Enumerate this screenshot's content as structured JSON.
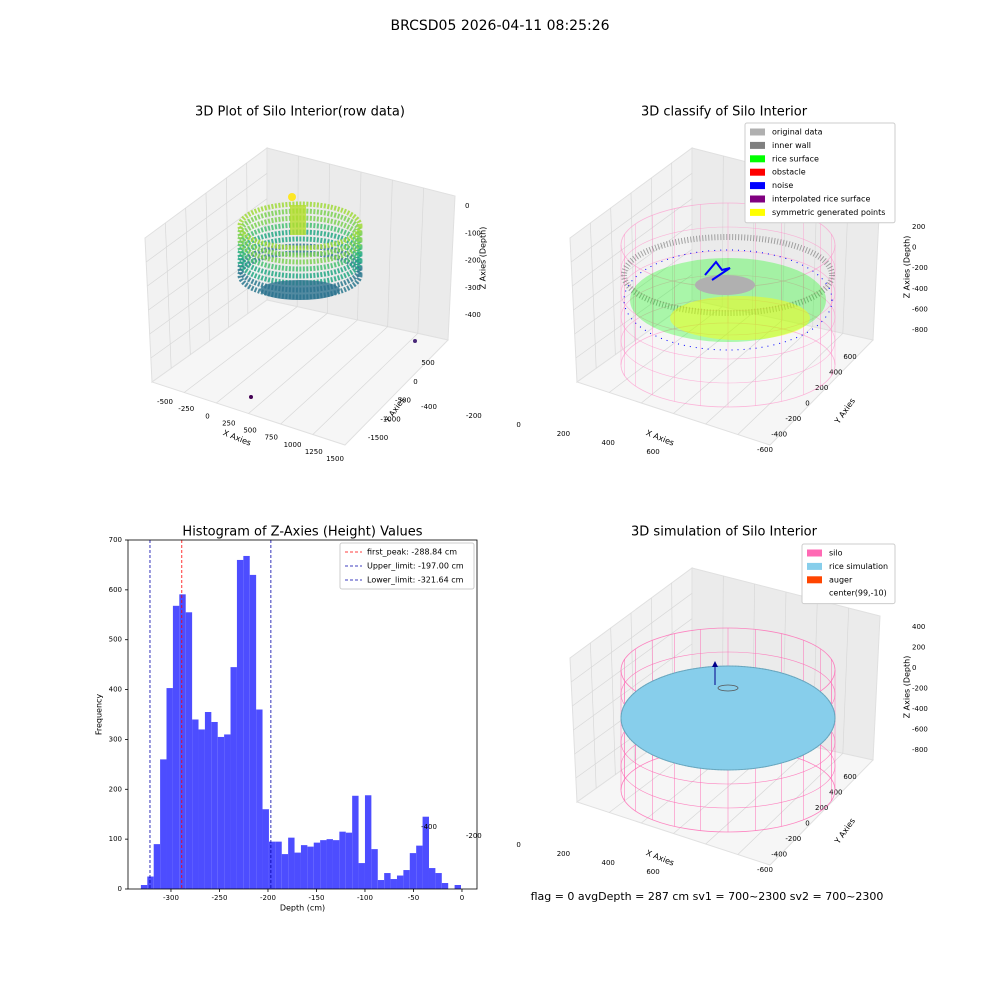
{
  "suptitle": "BRCSD05 2026-04-11 08:25:26",
  "chart_data": [
    {
      "type": "scatter3d",
      "title": "3D Plot of Silo Interior(row data)",
      "xlabel": "X Axies",
      "ylabel": "Y Axies",
      "zlabel": "Z Axies (Depth)",
      "xticks": [
        -500,
        -250,
        0,
        250,
        500,
        750,
        1000,
        1250,
        1500
      ],
      "yticks": [
        -1500,
        -1000,
        -500,
        0,
        500
      ],
      "zticks": [
        -400,
        -300,
        -200,
        -100,
        0
      ]
    },
    {
      "type": "scatter3d",
      "title": "3D classify of Silo Interior",
      "xlabel": "X Axies",
      "ylabel": "Y Axies",
      "zlabel": "Z Axies (Depth)",
      "xticks": [
        -400,
        -200,
        0,
        200,
        400,
        600
      ],
      "yticks": [
        -600,
        -400,
        -200,
        0,
        200,
        400,
        600
      ],
      "zticks": [
        -800,
        -600,
        -400,
        -200,
        0,
        200
      ],
      "legend": [
        {
          "name": "original data",
          "color": "#b0b0b0"
        },
        {
          "name": "inner wall",
          "color": "#808080"
        },
        {
          "name": "rice surface",
          "color": "#00ff00"
        },
        {
          "name": "obstacle",
          "color": "#ff0000"
        },
        {
          "name": "noise",
          "color": "#0000ff"
        },
        {
          "name": "interpolated rice surface",
          "color": "#800080"
        },
        {
          "name": "symmetric generated points",
          "color": "#ffff00"
        }
      ]
    },
    {
      "type": "histogram",
      "title": "Histogram of Z-Axies (Height) Values",
      "xlabel": "Depth (cm)",
      "ylabel": "Frequency",
      "color": "#4d4dff",
      "bins": [
        -331,
        -324.4,
        -317.8,
        -311.2,
        -304.6,
        -298,
        -291.4,
        -284.8,
        -278.2,
        -271.6,
        -265,
        -258.4,
        -251.8,
        -245.2,
        -238.6,
        -232,
        -225.4,
        -218.8,
        -212.2,
        -205.6,
        -199,
        -192.4,
        -185.8,
        -179.2,
        -172.6,
        -166,
        -159.4,
        -152.8,
        -146.2,
        -139.6,
        -133,
        -126.4,
        -119.8,
        -113.2,
        -106.6,
        -100,
        -93.4,
        -86.8,
        -80.2,
        -73.6,
        -67,
        -60.4,
        -53.8,
        -47.2,
        -40.6,
        -34,
        -27.4,
        -20.8,
        -14.2,
        -7.6,
        -1
      ],
      "counts": [
        8,
        25,
        90,
        260,
        403,
        568,
        591,
        555,
        340,
        320,
        355,
        335,
        305,
        310,
        445,
        660,
        668,
        630,
        360,
        160,
        95,
        95,
        70,
        103,
        73,
        88,
        85,
        93,
        98,
        100,
        98,
        115,
        113,
        187,
        52,
        188,
        80,
        18,
        32,
        20,
        27,
        38,
        72,
        87,
        145,
        42,
        32,
        12,
        0,
        8
      ],
      "xlim": [
        -344.3,
        15.5
      ],
      "ylim": [
        0,
        700
      ],
      "xticks": [
        -300,
        -250,
        -200,
        -150,
        -100,
        -50,
        0
      ],
      "yticks": [
        0,
        100,
        200,
        300,
        400,
        500,
        600,
        700
      ],
      "vlines": [
        {
          "label": "first_peak: -288.84 cm",
          "value": -288.84,
          "color": "#ff0000"
        },
        {
          "label": "Upper_limit: -197.00 cm",
          "value": -197.0,
          "color": "#0000aa"
        },
        {
          "label": "Lower_limit: -321.64 cm",
          "value": -321.64,
          "color": "#0000aa"
        }
      ]
    },
    {
      "type": "surface3d",
      "title": "3D simulation of Silo Interior",
      "xlabel": "X Axies",
      "ylabel": "Y Axies",
      "zlabel": "Z Axies (Depth)",
      "xticks": [
        -400,
        -200,
        0,
        200,
        400,
        600
      ],
      "yticks": [
        -600,
        -400,
        -200,
        0,
        200,
        400,
        600
      ],
      "zticks": [
        -800,
        -600,
        -400,
        -200,
        0,
        200,
        400
      ],
      "legend": [
        {
          "name": "silo",
          "color": "#ff69b4"
        },
        {
          "name": "rice simulation",
          "color": "#87ceeb"
        },
        {
          "name": "auger",
          "color": "#ff4500"
        },
        {
          "name": "center(99,-10)",
          "color": "#ffffff"
        }
      ],
      "annotation": "flag = 0     avgDepth = 287 cm  sv1 = 700~2300  sv2 = 700~2300"
    }
  ]
}
